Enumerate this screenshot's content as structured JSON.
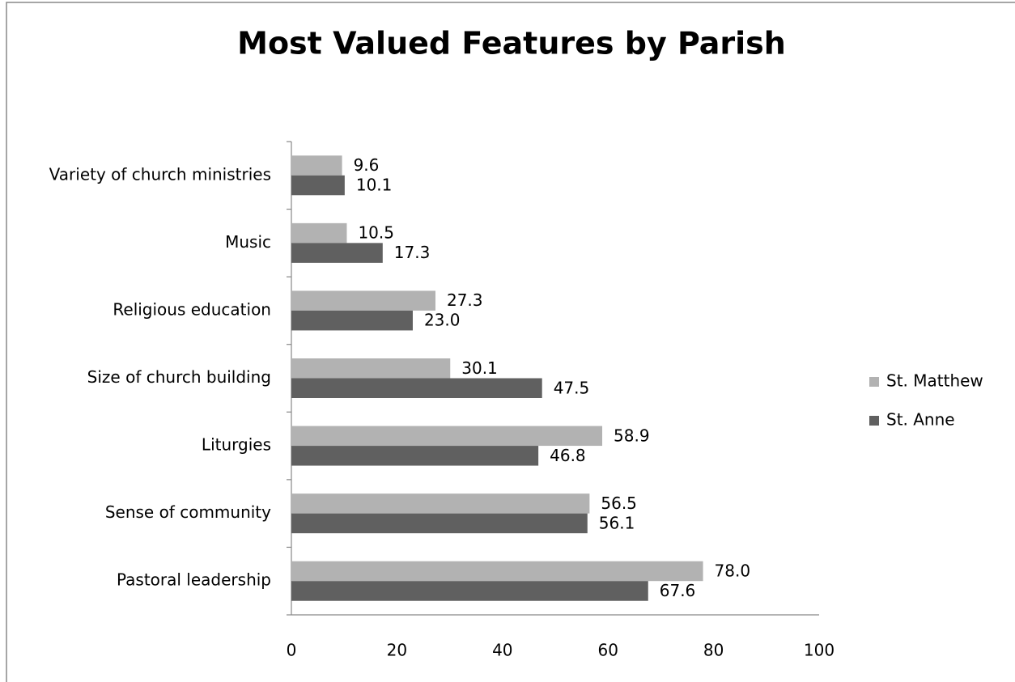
{
  "chart_data": {
    "type": "bar",
    "orientation": "horizontal",
    "title": "Most Valued Features by Parish",
    "categories": [
      "Pastoral leadership",
      "Sense of community",
      "Liturgies",
      "Size of church building",
      "Religious education",
      "Music",
      "Variety of church ministries"
    ],
    "series": [
      {
        "name": "St. Matthew",
        "color": "#b2b2b2",
        "values": [
          78.0,
          56.5,
          58.9,
          30.1,
          27.3,
          10.5,
          9.6
        ],
        "value_labels": [
          "78.0",
          "56.5",
          "58.9",
          "30.1",
          "27.3",
          "10.5",
          "9.6"
        ]
      },
      {
        "name": "St. Anne",
        "color": "#606060",
        "values": [
          67.6,
          56.1,
          46.8,
          47.5,
          23.0,
          17.3,
          10.1
        ],
        "value_labels": [
          "67.6",
          "56.1",
          "46.8",
          "47.5",
          "23.0",
          "17.3",
          "10.1"
        ]
      }
    ],
    "xlim": [
      0,
      100
    ],
    "xticks": [
      0,
      20,
      40,
      60,
      80,
      100
    ],
    "grid": false,
    "legend": "right"
  }
}
